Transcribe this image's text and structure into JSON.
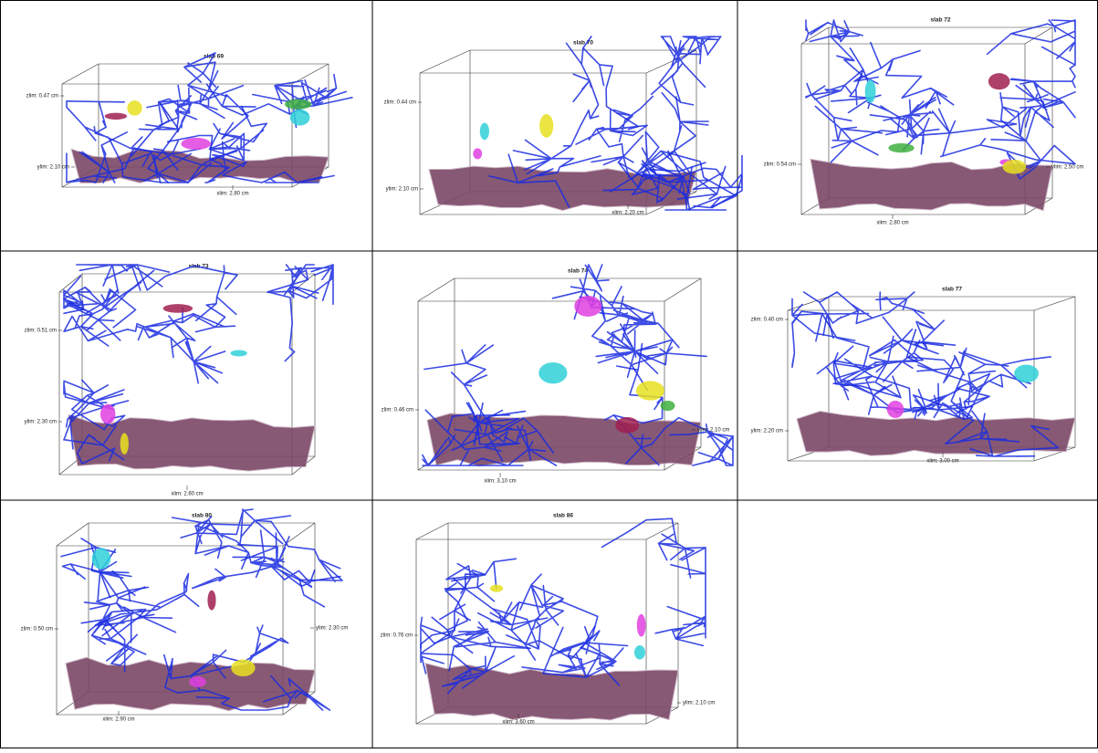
{
  "panels": [
    {
      "title": "slab 69",
      "zlim": "zlim: 0.47 cm",
      "ylim": "ylim: 2.10 cm",
      "xlim": "xlim: 2.80 cm"
    },
    {
      "title": "slab 70",
      "zlim": "zlim: 0.44 cm",
      "ylim": "ylim: 2.10 cm",
      "xlim": "xlim: 2.20 cm"
    },
    {
      "title": "slab 72",
      "zlim": "zlim: 0.54 cm",
      "ylim": "ylim: 2.50 cm",
      "xlim": "xlim: 2.80 cm"
    },
    {
      "title": "slab 73",
      "zlim": "zlim: 0.51 cm",
      "ylim": "ylim: 2.30 cm",
      "xlim": "xlim: 2.60 cm"
    },
    {
      "title": "slab 74",
      "zlim": "zlim: 0.46 cm",
      "ylim": "ylim: 2.10 cm",
      "xlim": "xlim: 3.10 cm"
    },
    {
      "title": "slab 77",
      "zlim": "zlim: 0.40 cm",
      "ylim": "ylim: 2.20 cm",
      "xlim": "xlim: 3.00 cm"
    },
    {
      "title": "slab 80",
      "zlim": "zlim: 0.50 cm",
      "ylim": "ylim: 2.30 cm",
      "xlim": "xlim: 2.90 cm"
    },
    {
      "title": "slab 86",
      "zlim": "zlim: 0.76 cm",
      "ylim": "ylim: 2.10 cm",
      "xlim": "xlim: 3.60 cm"
    }
  ]
}
